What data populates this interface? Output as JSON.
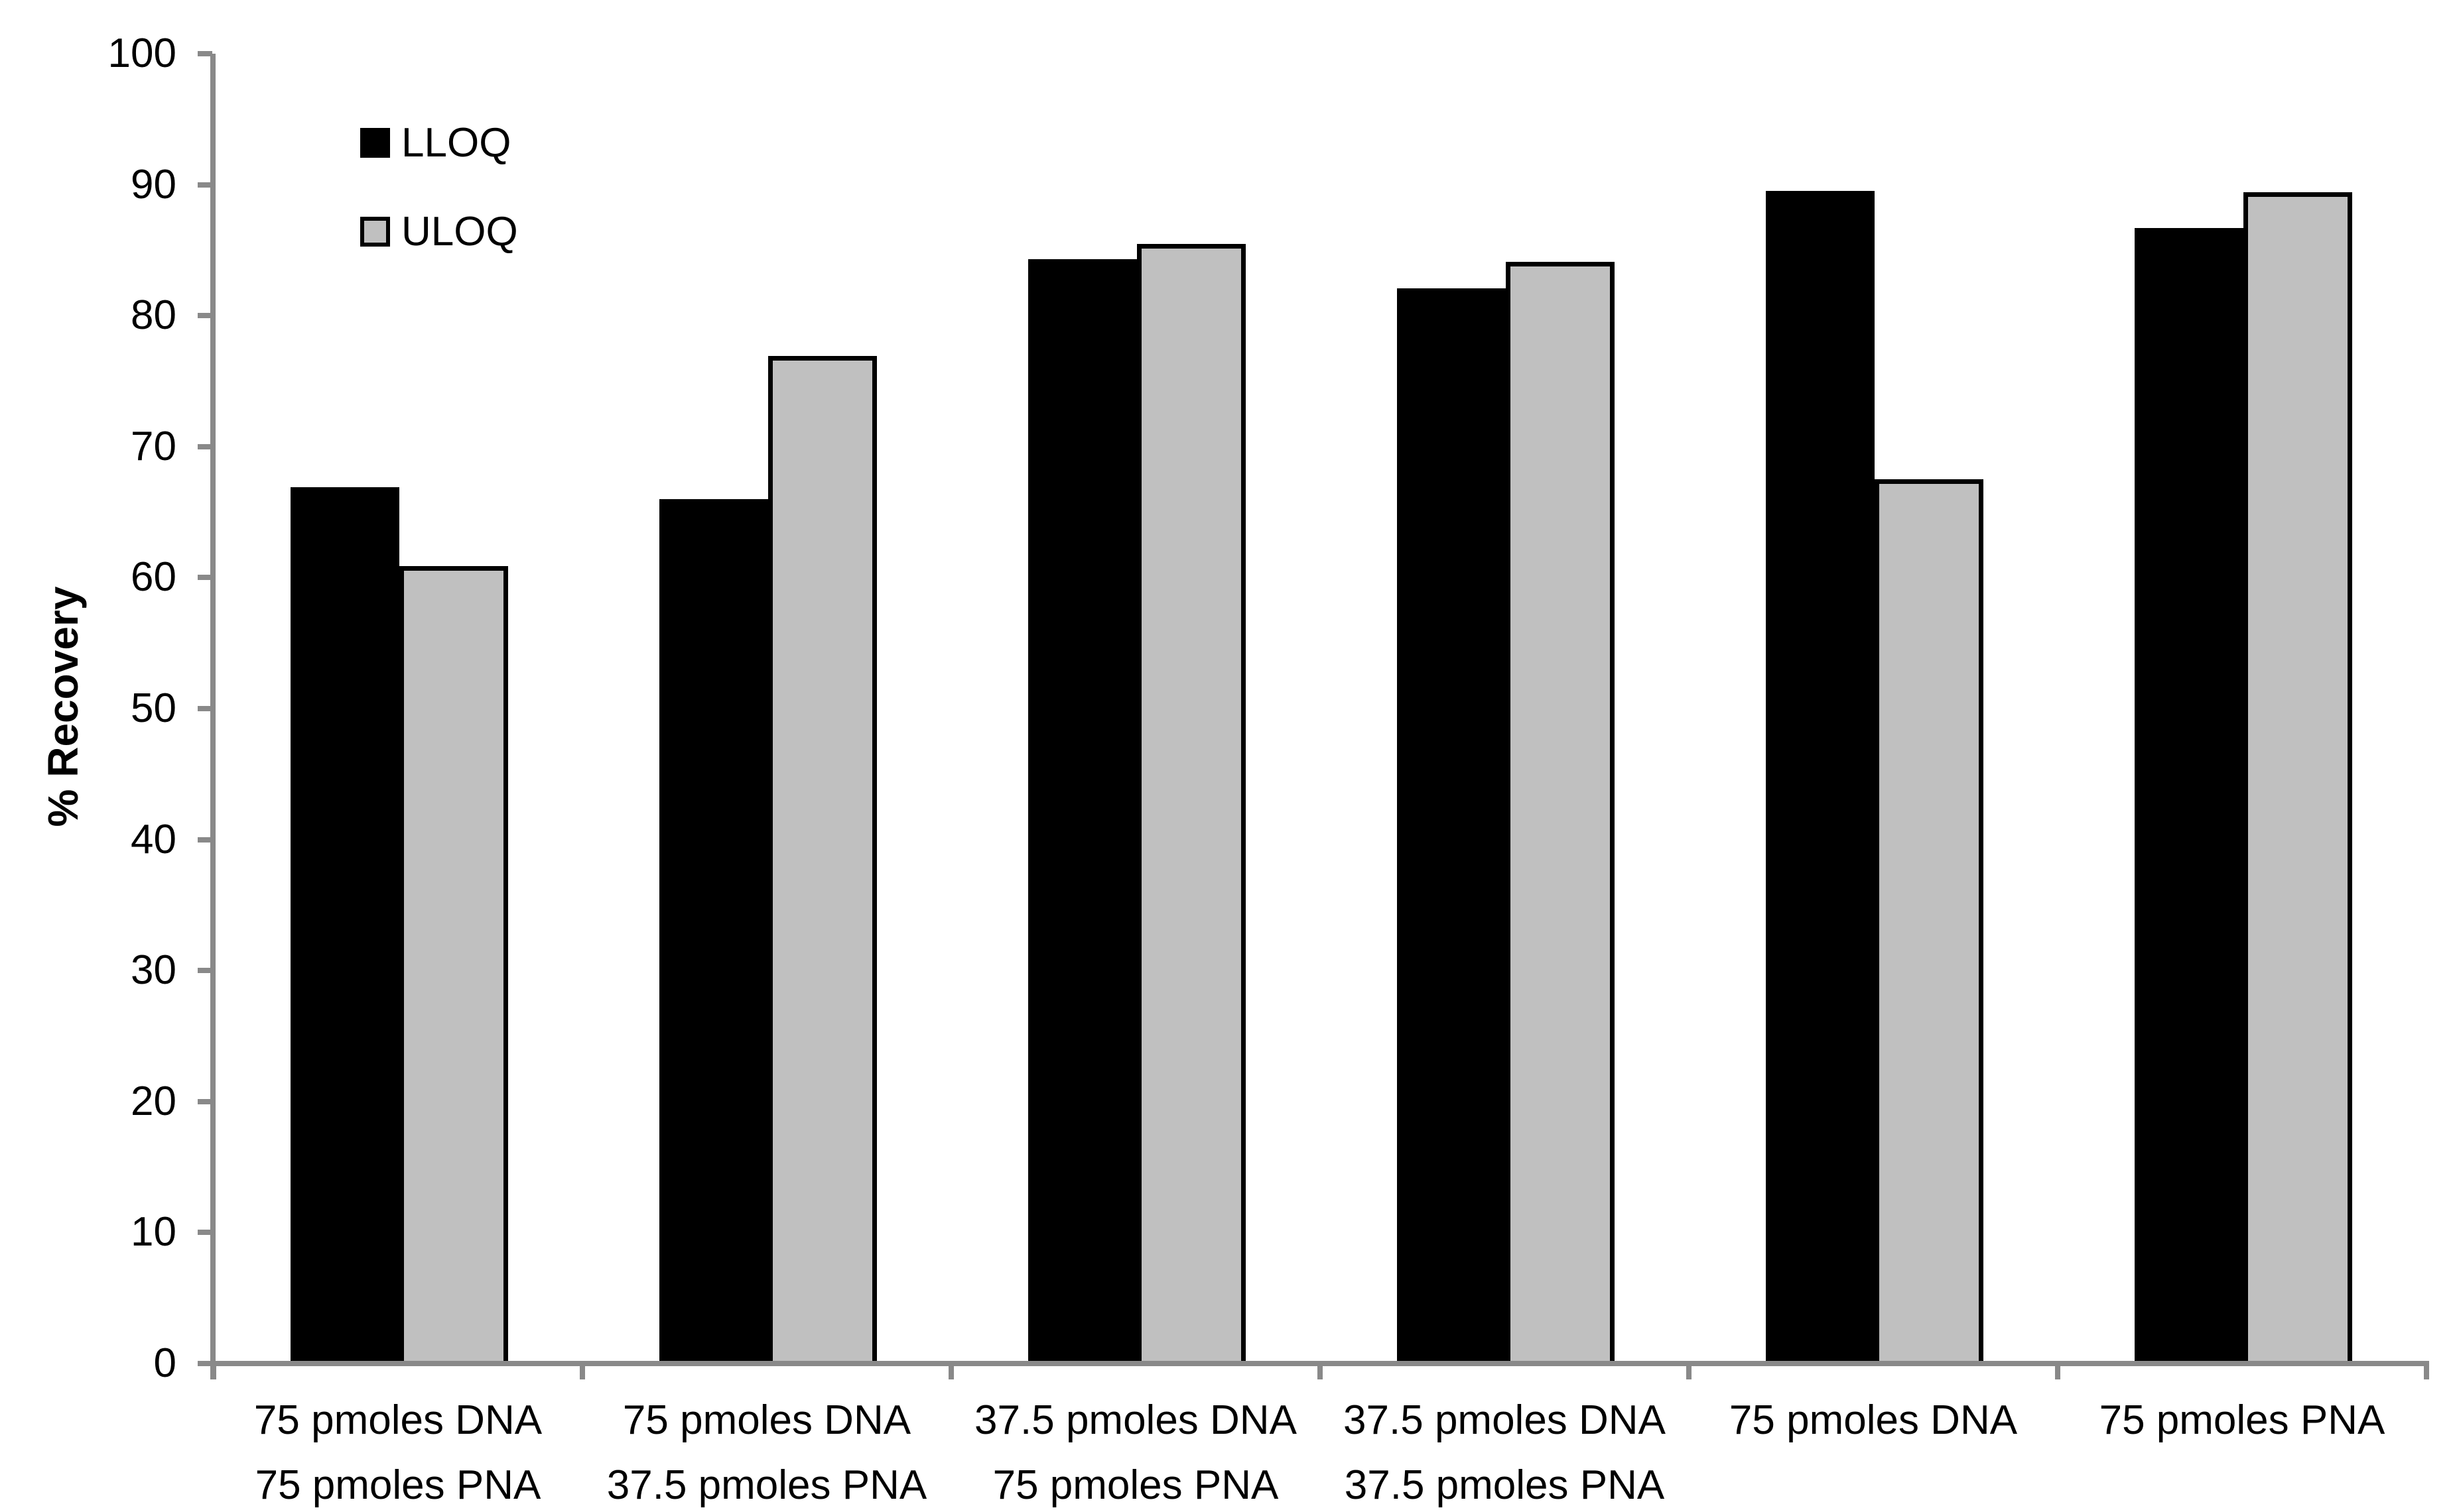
{
  "chart_data": {
    "type": "bar",
    "title": "",
    "xlabel": "",
    "ylabel": "% Recovery",
    "ylim": [
      0,
      100
    ],
    "ytick_step": 10,
    "grid": false,
    "legend_position": "top-left",
    "background": "#ffffff",
    "axis_color": "#898989",
    "categories": [
      [
        "75 pmoles DNA",
        "75 pmoles PNA"
      ],
      [
        "75 pmoles DNA",
        "37.5 pmoles PNA"
      ],
      [
        "37.5 pmoles DNA",
        "75 pmoles PNA"
      ],
      [
        "37.5 pmoles DNA",
        "37.5 pmoles PNA"
      ],
      [
        "75 pmoles DNA"
      ],
      [
        "75 pmoles PNA"
      ]
    ],
    "series": [
      {
        "name": "LLOQ",
        "color": "#000000",
        "stroke": null,
        "values": [
          66.9,
          66.0,
          84.3,
          82.1,
          89.5,
          86.7
        ]
      },
      {
        "name": "ULOQ",
        "color": "#C0C0C0",
        "stroke": "#000000",
        "values": [
          60.9,
          76.9,
          85.5,
          84.1,
          67.5,
          89.4
        ]
      }
    ]
  },
  "y_axis": {
    "ticks": [
      "0",
      "10",
      "20",
      "30",
      "40",
      "50",
      "60",
      "70",
      "80",
      "90",
      "100"
    ]
  },
  "legend": {
    "items": [
      {
        "label": "LLOQ"
      },
      {
        "label": "ULOQ"
      }
    ]
  }
}
